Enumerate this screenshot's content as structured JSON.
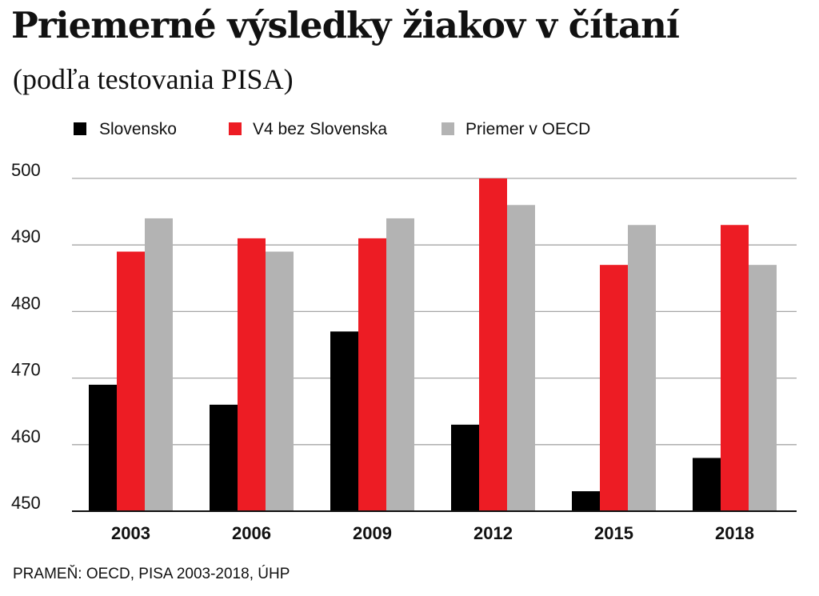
{
  "header": {
    "title": "Priemerné výsledky žiakov v čítaní",
    "subtitle": "(podľa testovania PISA)"
  },
  "footer": {
    "source": "PRAMEŇ: OECD, PISA 2003-2018, ÚHP"
  },
  "chart_data": {
    "type": "bar",
    "title": "Priemerné výsledky žiakov v čítaní",
    "subtitle": "(podľa testovania PISA)",
    "categories": [
      "2003",
      "2006",
      "2009",
      "2012",
      "2015",
      "2018"
    ],
    "series": [
      {
        "name": "Slovensko",
        "color": "#000000",
        "values": [
          469,
          466,
          477,
          463,
          453,
          458
        ]
      },
      {
        "name": "V4 bez Slovenska",
        "color": "#ed1c24",
        "values": [
          489,
          491,
          491,
          500,
          487,
          493
        ]
      },
      {
        "name": "Priemer v OECD",
        "color": "#b3b3b3",
        "values": [
          494,
          489,
          494,
          496,
          493,
          487
        ]
      }
    ],
    "yticks": [
      450,
      460,
      470,
      480,
      490,
      500
    ],
    "ylim": [
      450,
      500
    ],
    "xlabel": "",
    "ylabel": "",
    "grid": true,
    "legend_position": "top-left"
  }
}
